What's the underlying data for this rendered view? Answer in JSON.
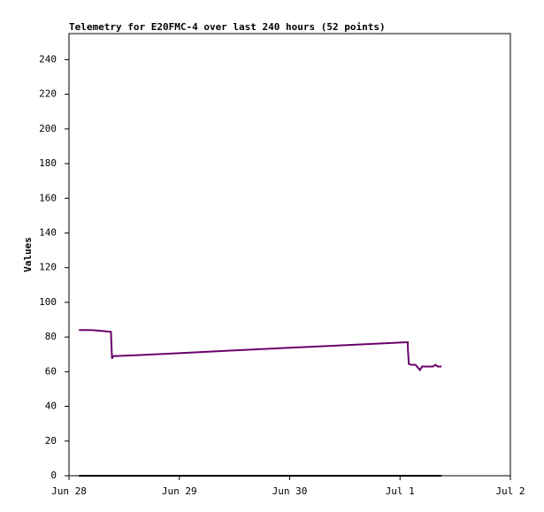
{
  "chart_data": {
    "type": "line",
    "title": "Telemetry for E20FMC-4 over last 240 hours (52 points)",
    "y_label": "Values",
    "xlim": [
      0,
      4
    ],
    "xticks": [
      {
        "value": 0,
        "label": "Jun 28"
      },
      {
        "value": 1,
        "label": "Jun 29"
      },
      {
        "value": 2,
        "label": "Jun 30"
      },
      {
        "value": 3,
        "label": "Jul 1"
      },
      {
        "value": 4,
        "label": "Jul 2"
      }
    ],
    "ylim": [
      0,
      255
    ],
    "yticks": [
      0,
      20,
      40,
      60,
      80,
      100,
      120,
      140,
      160,
      180,
      200,
      220,
      240
    ],
    "grid": false,
    "series": [
      {
        "color": "#6a006a",
        "x": [
          0.09,
          0.2,
          0.3,
          0.38,
          0.385,
          0.39,
          0.4,
          0.6,
          1.0,
          1.5,
          2.0,
          2.5,
          3.0,
          3.07,
          3.072,
          3.08,
          3.1,
          3.14,
          3.16,
          3.18,
          3.2,
          3.26,
          3.3,
          3.32,
          3.34,
          3.376
        ],
        "values": [
          84,
          84,
          83.5,
          83,
          75,
          67.5,
          69,
          69.5,
          70.7,
          72.3,
          73.8,
          75.3,
          76.8,
          77,
          72,
          64.5,
          64,
          64,
          62.5,
          61,
          63,
          63,
          63,
          64,
          63,
          63
        ]
      },
      {
        "color": "#000000",
        "x": [
          0.09,
          1.0,
          2.0,
          3.0,
          3.376
        ],
        "values": [
          0,
          0,
          0,
          0,
          0
        ]
      }
    ]
  }
}
